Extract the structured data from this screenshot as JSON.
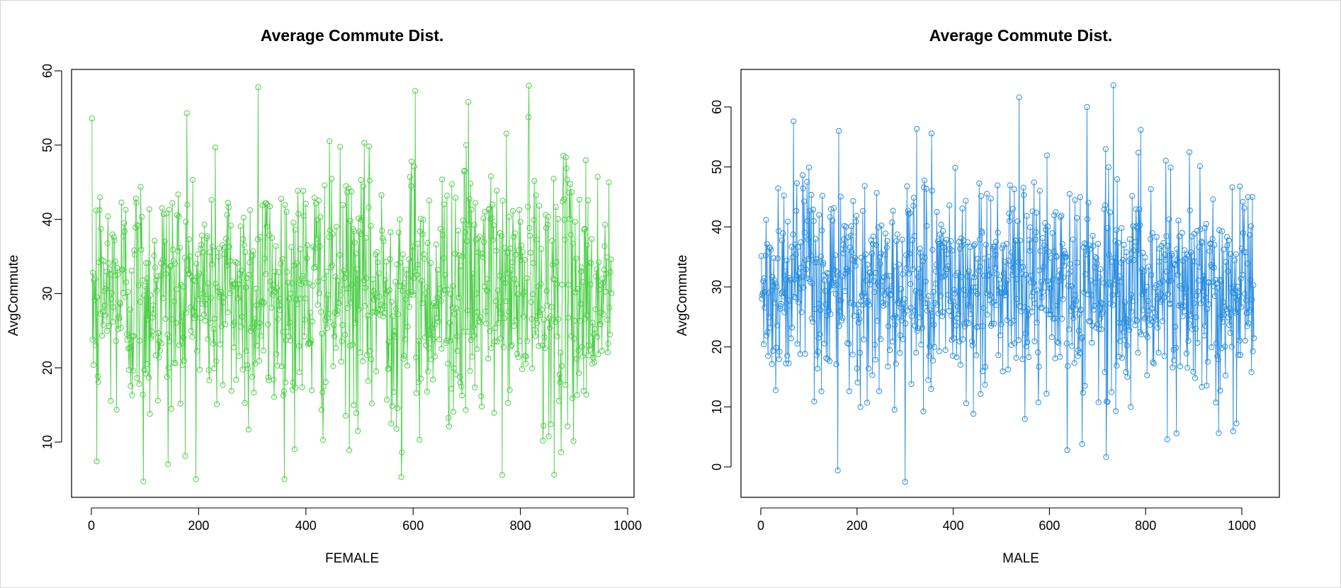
{
  "colors": {
    "female": "#4fcf4a",
    "male": "#2b8ee0",
    "axes": "#000000",
    "background": "#ffffff"
  },
  "chart_data": [
    {
      "type": "line",
      "markers": "open-circle",
      "title": "Average Commute Dist.",
      "xlabel": "FEMALE",
      "ylabel": "AvgCommute",
      "xlim": [
        0,
        1000
      ],
      "ylim": [
        5,
        60
      ],
      "xticks": [
        "0",
        "200",
        "400",
        "600",
        "800",
        "1000"
      ],
      "yticks": [
        "10",
        "20",
        "30",
        "40",
        "50",
        "60"
      ],
      "grid": false,
      "series": [
        {
          "n_points": 970,
          "points_generated": "approximate — individual values not legible",
          "mean": 30,
          "min": 5,
          "max": 58,
          "marked_extremes": [
            {
              "x": 97,
              "y": 4.7
            },
            {
              "x": 311,
              "y": 57.8
            },
            {
              "x": 604,
              "y": 57.3
            },
            {
              "x": 816,
              "y": 58.0
            },
            {
              "x": 578,
              "y": 5.3
            },
            {
              "x": 863,
              "y": 5.6
            },
            {
              "x": 143,
              "y": 7.0
            },
            {
              "x": 10,
              "y": 7.4
            },
            {
              "x": 703,
              "y": 55.8
            },
            {
              "x": 178,
              "y": 54.3
            }
          ]
        }
      ]
    },
    {
      "type": "line",
      "markers": "open-circle",
      "title": "Average Commute Dist.",
      "xlabel": "MALE",
      "ylabel": "AvgCommute",
      "xlim": [
        0,
        1030
      ],
      "ylim": [
        -5,
        65
      ],
      "xticks": [
        "0",
        "200",
        "400",
        "600",
        "800",
        "1000"
      ],
      "yticks": [
        "0",
        "10",
        "20",
        "30",
        "40",
        "50",
        "60"
      ],
      "grid": false,
      "series": [
        {
          "n_points": 1025,
          "points_generated": "approximate — individual values not legible",
          "mean": 30,
          "min": -2.5,
          "max": 63.5,
          "marked_extremes": [
            {
              "x": 733,
              "y": 63.6
            },
            {
              "x": 537,
              "y": 61.6
            },
            {
              "x": 68,
              "y": 57.6
            },
            {
              "x": 300,
              "y": -2.5
            },
            {
              "x": 160,
              "y": -0.6
            },
            {
              "x": 637,
              "y": 2.8
            },
            {
              "x": 790,
              "y": 56.2
            },
            {
              "x": 355,
              "y": 55.6
            },
            {
              "x": 845,
              "y": 4.6
            },
            {
              "x": 668,
              "y": 3.8
            }
          ]
        }
      ]
    }
  ]
}
